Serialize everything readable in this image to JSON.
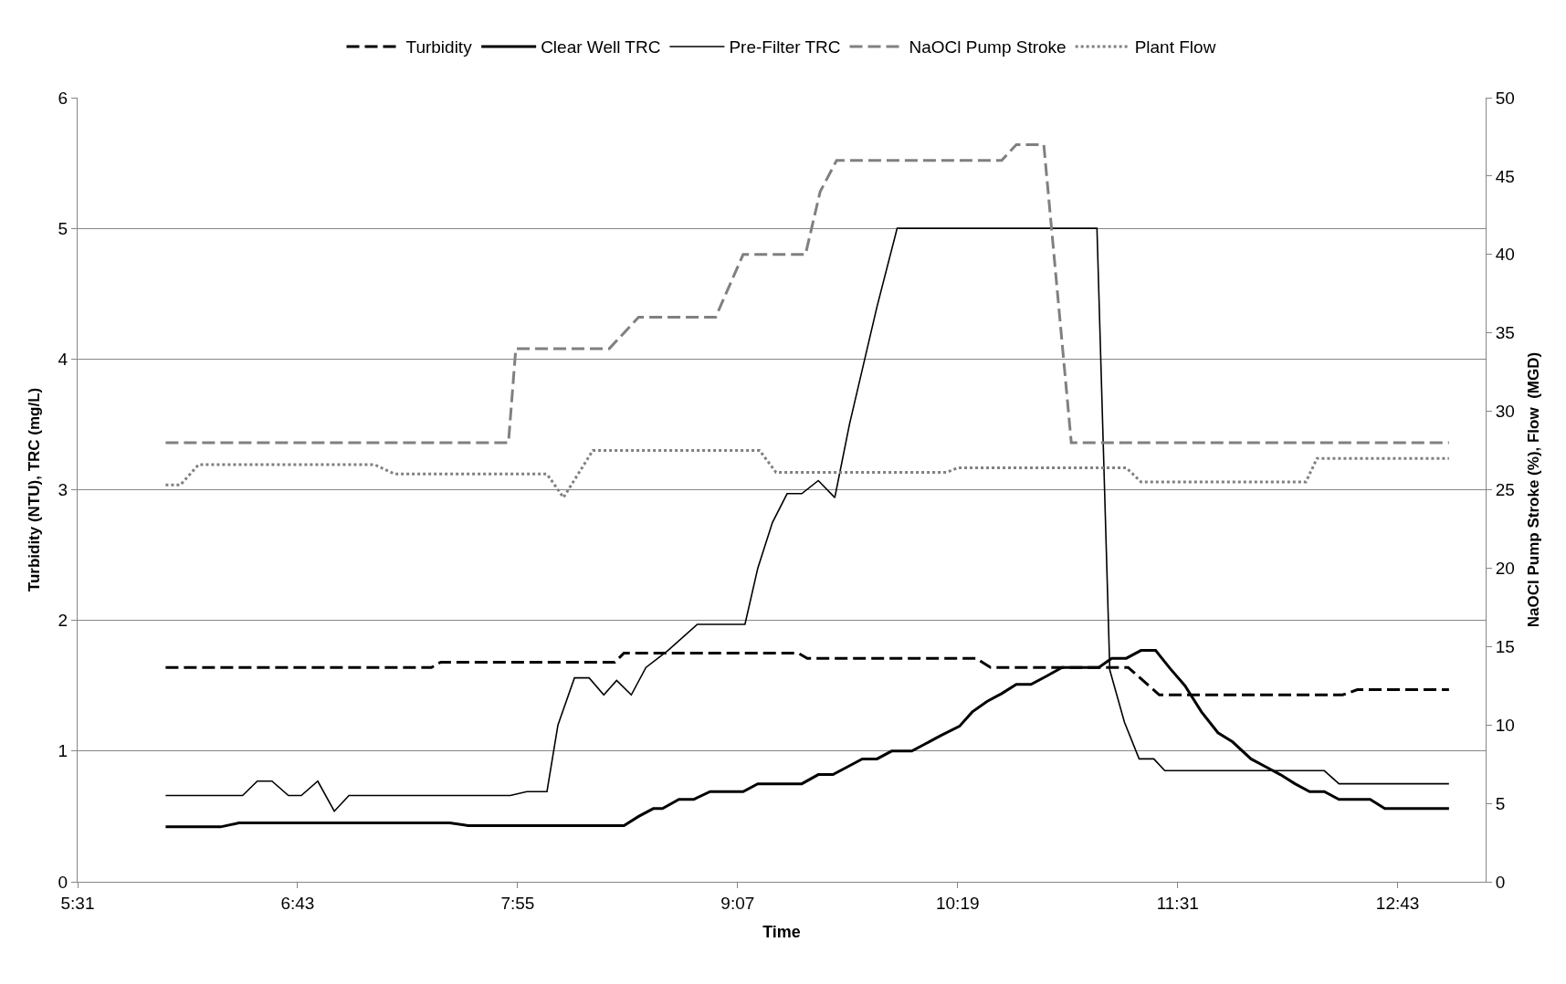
{
  "chart_data": {
    "type": "line",
    "xlabel": "Time",
    "ylabel": "Turbidity (NTU), TRC (mg/L)",
    "y2label": "NaOCl Pump Stroke (%), Flow  (MGD)",
    "xlim": [
      5.52,
      13.2
    ],
    "xticks": [
      {
        "value": 5.52,
        "label": "5:31"
      },
      {
        "value": 6.72,
        "label": "6:43"
      },
      {
        "value": 7.92,
        "label": "7:55"
      },
      {
        "value": 9.12,
        "label": "9:07"
      },
      {
        "value": 10.32,
        "label": "10:19"
      },
      {
        "value": 11.52,
        "label": "11:31"
      },
      {
        "value": 12.72,
        "label": "12:43"
      }
    ],
    "ylim": [
      0,
      6
    ],
    "yticks": [
      0,
      1,
      2,
      3,
      4,
      5,
      6
    ],
    "y2lim": [
      0,
      50
    ],
    "y2ticks": [
      0,
      5,
      10,
      15,
      20,
      25,
      30,
      35,
      40,
      45,
      50
    ],
    "grid": "y",
    "legend": "top",
    "marker": "none",
    "series": [
      {
        "name": "Turbidity",
        "color": "#000000",
        "line_style": "dashed",
        "x": [
          6.0,
          7.45,
          7.5,
          8.45,
          8.5,
          9.45,
          9.5,
          10.42,
          10.5,
          11.25,
          11.42,
          12.42,
          12.5,
          13.0
        ],
        "values": [
          1.64,
          1.64,
          1.68,
          1.68,
          1.75,
          1.75,
          1.71,
          1.71,
          1.64,
          1.64,
          1.43,
          1.43,
          1.47,
          1.47
        ]
      },
      {
        "name": "Clear Well TRC",
        "color": "#000000",
        "line_style": "solid",
        "x": [
          6.0,
          6.3,
          6.4,
          7.55,
          7.65,
          8.5,
          8.58,
          8.66,
          8.71,
          8.8,
          8.88,
          8.97,
          9.15,
          9.23,
          9.47,
          9.56,
          9.64,
          9.72,
          9.8,
          9.88,
          9.96,
          10.07,
          10.15,
          10.23,
          10.33,
          10.4,
          10.48,
          10.56,
          10.64,
          10.72,
          10.8,
          10.89,
          11.09,
          11.16,
          11.24,
          11.32,
          11.4,
          11.48,
          11.56,
          11.65,
          11.74,
          11.82,
          11.92,
          12.0,
          12.08,
          12.16,
          12.24,
          12.32,
          12.4,
          12.57,
          12.65,
          13.0
        ],
        "values": [
          0.42,
          0.42,
          0.45,
          0.45,
          0.43,
          0.43,
          0.5,
          0.56,
          0.56,
          0.63,
          0.63,
          0.69,
          0.69,
          0.75,
          0.75,
          0.82,
          0.82,
          0.88,
          0.94,
          0.94,
          1.0,
          1.0,
          1.06,
          1.12,
          1.19,
          1.3,
          1.38,
          1.44,
          1.51,
          1.51,
          1.57,
          1.64,
          1.64,
          1.71,
          1.71,
          1.77,
          1.77,
          1.63,
          1.5,
          1.3,
          1.14,
          1.07,
          0.94,
          0.88,
          0.82,
          0.75,
          0.69,
          0.69,
          0.63,
          0.63,
          0.56,
          0.56
        ]
      },
      {
        "name": "Pre-Filter TRC",
        "color": "#000000",
        "line_style": "solid",
        "x": [
          6.0,
          6.42,
          6.5,
          6.58,
          6.67,
          6.74,
          6.83,
          6.92,
          7.0,
          7.88,
          7.97,
          8.08,
          8.14,
          8.23,
          8.31,
          8.39,
          8.46,
          8.54,
          8.62,
          8.74,
          8.9,
          9.16,
          9.23,
          9.31,
          9.39,
          9.47,
          9.56,
          9.65,
          9.73,
          9.88,
          9.99,
          11.08,
          11.15,
          11.23,
          11.31,
          11.39,
          11.45,
          12.32,
          12.4,
          13.0
        ],
        "values": [
          0.66,
          0.66,
          0.77,
          0.77,
          0.66,
          0.66,
          0.77,
          0.54,
          0.66,
          0.66,
          0.69,
          0.69,
          1.2,
          1.56,
          1.56,
          1.43,
          1.54,
          1.43,
          1.64,
          1.77,
          1.97,
          1.97,
          2.4,
          2.75,
          2.97,
          2.97,
          3.07,
          2.94,
          3.5,
          4.4,
          5.0,
          5.0,
          1.62,
          1.22,
          0.94,
          0.94,
          0.85,
          0.85,
          0.75,
          0.75
        ]
      },
      {
        "name": "NaOCl Pump Stroke",
        "color": "#808080",
        "line_style": "dashed",
        "axis": "y2",
        "x": [
          6.0,
          7.87,
          7.91,
          8.42,
          8.58,
          9.0,
          9.15,
          9.49,
          9.57,
          9.66,
          10.56,
          10.64,
          10.79,
          10.94,
          13.0
        ],
        "values": [
          28,
          28,
          34,
          34,
          36,
          36,
          40,
          40,
          44,
          46,
          46,
          47,
          47,
          28,
          28
        ]
      },
      {
        "name": "Plant Flow",
        "color": "#808080",
        "line_style": "dotted",
        "axis": "y2",
        "x": [
          6.0,
          6.08,
          6.18,
          7.14,
          7.25,
          8.08,
          8.17,
          8.33,
          9.24,
          9.33,
          10.26,
          10.32,
          11.24,
          11.32,
          12.22,
          12.28,
          13.0
        ],
        "values": [
          25.3,
          25.3,
          26.6,
          26.6,
          26.0,
          26.0,
          24.5,
          27.5,
          27.5,
          26.1,
          26.1,
          26.4,
          26.4,
          25.5,
          25.5,
          27.0,
          27.0
        ]
      }
    ]
  }
}
